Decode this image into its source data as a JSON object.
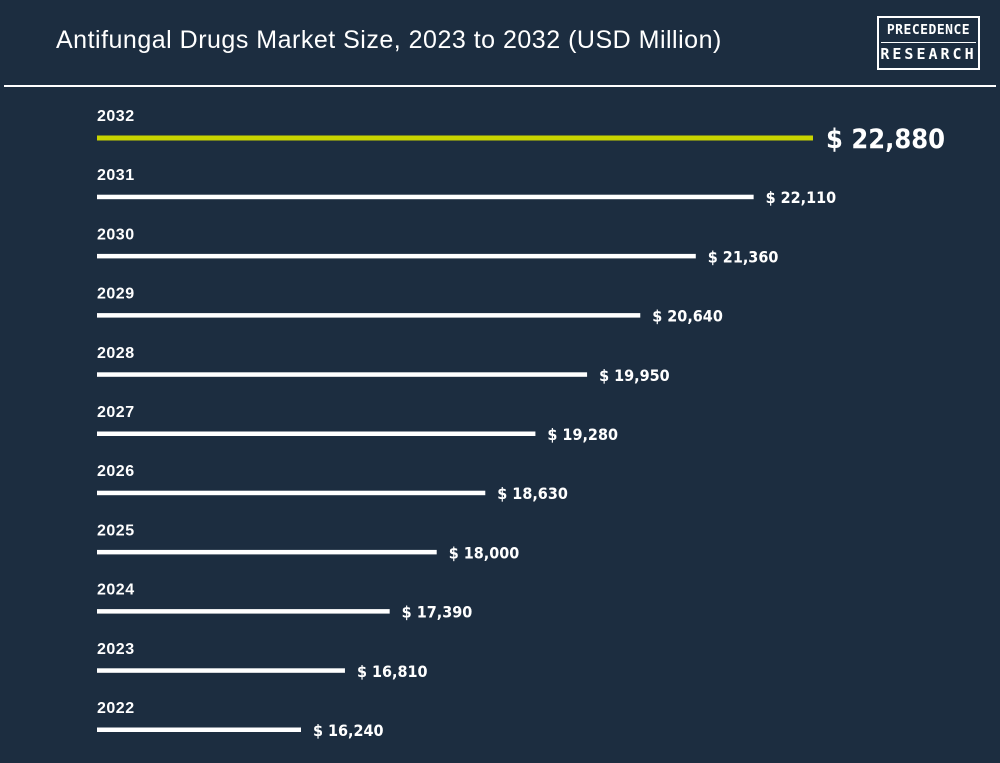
{
  "header": {
    "title": "Antifungal Drugs Market Size, 2023 to 2032 (USD Million)",
    "logo_line1": "PRECEDENCE",
    "logo_line2": "RESEARCH"
  },
  "colors": {
    "background": "#1c2d40",
    "bar": "#ffffff",
    "highlight_bar": "#c8d400",
    "text": "#ffffff"
  },
  "chart_data": {
    "type": "bar",
    "orientation": "horizontal",
    "title": "Antifungal Drugs Market Size, 2023 to 2032 (USD Million)",
    "categories": [
      "2032",
      "2031",
      "2030",
      "2029",
      "2028",
      "2027",
      "2026",
      "2025",
      "2024",
      "2023",
      "2022"
    ],
    "values": [
      22880,
      22110,
      21360,
      20640,
      19950,
      19280,
      18630,
      18000,
      17390,
      16810,
      16240
    ],
    "value_labels": [
      "$ 22,880",
      "$ 22,110",
      "$ 21,360",
      "$ 20,640",
      "$ 19,950",
      "$ 19,280",
      "$ 18,630",
      "$ 18,000",
      "$ 17,390",
      "$ 16,810",
      "$ 16,240"
    ],
    "highlight": "2032",
    "xlabel": "",
    "ylabel": "",
    "grid": false,
    "legend": "none"
  }
}
